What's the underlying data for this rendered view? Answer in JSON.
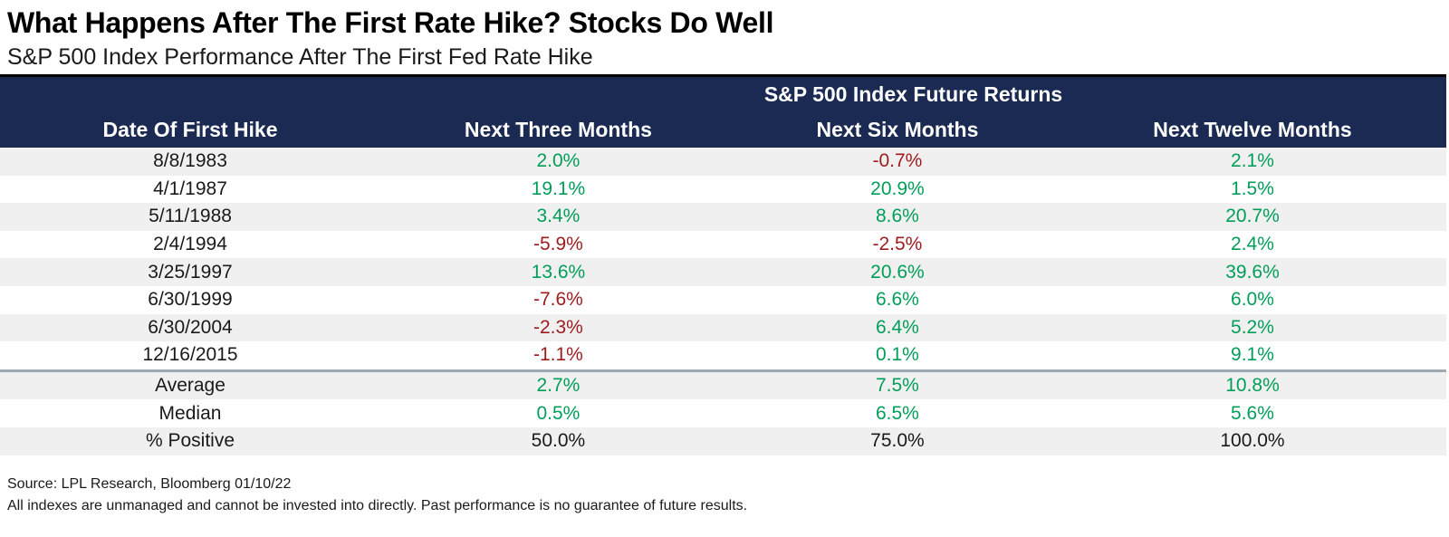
{
  "title": "What Happens After The First Rate Hike? Stocks Do Well",
  "subtitle": "S&P 500 Index Performance After The First Fed Rate Hike",
  "colors": {
    "header_bg": "#1a2a52",
    "positive": "#009E58",
    "negative": "#9E1B1E",
    "neutral": "#1a1a1a",
    "stripe": "#f0f0f0",
    "divider": "#9fa9b1"
  },
  "table": {
    "group_header": "S&P 500 Index Future Returns",
    "columns": [
      "Date Of First Hike",
      "Next Three Months",
      "Next Six Months",
      "Next Twelve Months"
    ],
    "rows": [
      {
        "label": "8/8/1983",
        "values": [
          "2.0%",
          "-0.7%",
          "2.1%"
        ],
        "signs": [
          "pos",
          "neg",
          "pos"
        ]
      },
      {
        "label": "4/1/1987",
        "values": [
          "19.1%",
          "20.9%",
          "1.5%"
        ],
        "signs": [
          "pos",
          "pos",
          "pos"
        ]
      },
      {
        "label": "5/11/1988",
        "values": [
          "3.4%",
          "8.6%",
          "20.7%"
        ],
        "signs": [
          "pos",
          "pos",
          "pos"
        ]
      },
      {
        "label": "2/4/1994",
        "values": [
          "-5.9%",
          "-2.5%",
          "2.4%"
        ],
        "signs": [
          "neg",
          "neg",
          "pos"
        ]
      },
      {
        "label": "3/25/1997",
        "values": [
          "13.6%",
          "20.6%",
          "39.6%"
        ],
        "signs": [
          "pos",
          "pos",
          "pos"
        ]
      },
      {
        "label": "6/30/1999",
        "values": [
          "-7.6%",
          "6.6%",
          "6.0%"
        ],
        "signs": [
          "neg",
          "pos",
          "pos"
        ]
      },
      {
        "label": "6/30/2004",
        "values": [
          "-2.3%",
          "6.4%",
          "5.2%"
        ],
        "signs": [
          "neg",
          "pos",
          "pos"
        ]
      },
      {
        "label": "12/16/2015",
        "values": [
          "-1.1%",
          "0.1%",
          "9.1%"
        ],
        "signs": [
          "neg",
          "pos",
          "pos"
        ]
      }
    ],
    "summary": [
      {
        "label": "Average",
        "values": [
          "2.7%",
          "7.5%",
          "10.8%"
        ],
        "signs": [
          "pos",
          "pos",
          "pos"
        ]
      },
      {
        "label": "Median",
        "values": [
          "0.5%",
          "6.5%",
          "5.6%"
        ],
        "signs": [
          "pos",
          "pos",
          "pos"
        ]
      },
      {
        "label": "% Positive",
        "values": [
          "50.0%",
          "75.0%",
          "100.0%"
        ],
        "signs": [
          "neu",
          "neu",
          "neu"
        ]
      }
    ]
  },
  "footer": {
    "source": "Source: LPL Research, Bloomberg 01/10/22",
    "disclaimer": "All indexes are unmanaged and cannot be invested into directly. Past performance is no guarantee of future results."
  },
  "chart_data": {
    "type": "table",
    "title": "What Happens After The First Rate Hike? Stocks Do Well",
    "subtitle": "S&P 500 Index Performance After The First Fed Rate Hike",
    "group_header": "S&P 500 Index Future Returns",
    "columns": [
      "Date Of First Hike",
      "Next Three Months",
      "Next Six Months",
      "Next Twelve Months"
    ],
    "rows": [
      [
        "8/8/1983",
        2.0,
        -0.7,
        2.1
      ],
      [
        "4/1/1987",
        19.1,
        20.9,
        1.5
      ],
      [
        "5/11/1988",
        3.4,
        8.6,
        20.7
      ],
      [
        "2/4/1994",
        -5.9,
        -2.5,
        2.4
      ],
      [
        "3/25/1997",
        13.6,
        20.6,
        39.6
      ],
      [
        "6/30/1999",
        -7.6,
        6.6,
        6.0
      ],
      [
        "6/30/2004",
        -2.3,
        6.4,
        5.2
      ],
      [
        "12/16/2015",
        -1.1,
        0.1,
        9.1
      ]
    ],
    "summary_rows": [
      [
        "Average",
        2.7,
        7.5,
        10.8
      ],
      [
        "Median",
        0.5,
        6.5,
        5.6
      ],
      [
        "% Positive",
        50.0,
        75.0,
        100.0
      ]
    ],
    "value_unit": "%"
  }
}
